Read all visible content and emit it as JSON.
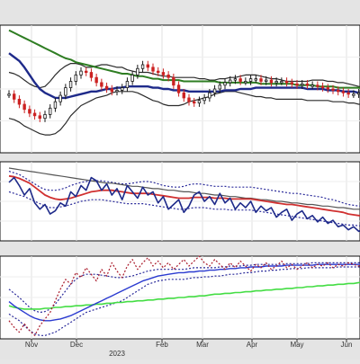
{
  "chart_data": [
    {
      "panel": "price",
      "type": "candlestick",
      "title": "",
      "grid": true,
      "ylim": [
        0,
        100
      ],
      "series": [
        {
          "key": "upper_band",
          "color": "#2b2b2b",
          "style": "solid",
          "values": [
            63,
            62,
            60,
            57,
            54,
            52,
            51,
            52,
            56,
            61,
            65,
            68,
            70,
            70,
            69,
            67,
            67,
            68,
            69,
            69,
            68,
            67,
            67,
            65,
            64,
            63,
            63,
            63,
            62,
            61,
            60,
            60,
            59,
            59,
            59,
            59,
            59,
            58,
            58,
            57,
            57,
            58,
            58,
            59,
            59,
            60,
            61,
            61,
            61,
            60,
            59,
            58,
            58,
            57,
            56,
            56,
            56,
            56,
            56,
            57,
            57,
            57,
            56,
            56,
            55,
            55,
            54,
            53,
            52,
            51
          ]
        },
        {
          "key": "lower_band",
          "color": "#2b2b2b",
          "style": "solid",
          "values": [
            27,
            26,
            24,
            21,
            19,
            17,
            15,
            14,
            14,
            15,
            18,
            23,
            29,
            33,
            37,
            39,
            41,
            43,
            44,
            45,
            47,
            48,
            48,
            48,
            48,
            47,
            45,
            43,
            41,
            40,
            38,
            37,
            37,
            37,
            38,
            40,
            41,
            42,
            43,
            44,
            46,
            47,
            48,
            48,
            48,
            47,
            46,
            45,
            44,
            44,
            43,
            43,
            42,
            42,
            42,
            42,
            42,
            42,
            41,
            41,
            41,
            41,
            41,
            40,
            40,
            40,
            39,
            39,
            38,
            38
          ]
        },
        {
          "key": "ma_blue",
          "color": "#1e2a8a",
          "style": "solid",
          "values": [
            78,
            75,
            72,
            67,
            61,
            55,
            50,
            47,
            45,
            43,
            43,
            43,
            44,
            45,
            46,
            47,
            48,
            48,
            49,
            50,
            50,
            51,
            51,
            52,
            52,
            52,
            52,
            52,
            51,
            51,
            50,
            50,
            49,
            49,
            49,
            48,
            48,
            48,
            48,
            48,
            48,
            48,
            49,
            49,
            49,
            50,
            50,
            50,
            51,
            51,
            51,
            51,
            51,
            51,
            51,
            51,
            51,
            51,
            50,
            50,
            50,
            50,
            49,
            49,
            49,
            48,
            48,
            48,
            47,
            47
          ]
        },
        {
          "key": "ma_green",
          "color": "#2e7d22",
          "style": "solid",
          "values": [
            96,
            94,
            92,
            90,
            88,
            86,
            84,
            82,
            80,
            78,
            76,
            74,
            73,
            71,
            70,
            69,
            68,
            67,
            66,
            65,
            64,
            63,
            62,
            62,
            61,
            60,
            60,
            59,
            58,
            58,
            57,
            57,
            57,
            57,
            56,
            56,
            56,
            56,
            56,
            56,
            56,
            55,
            55,
            55,
            55,
            55,
            55,
            55,
            55,
            54,
            54,
            54,
            54,
            54,
            54,
            54,
            53,
            53,
            53,
            53,
            52,
            52,
            52,
            52,
            51,
            51,
            51,
            51,
            51,
            50
          ]
        },
        {
          "key": "close",
          "type": "candlestick",
          "color_up": "#1a1a1a",
          "color_down": "#cc2222",
          "values": [
            46,
            42,
            38,
            34,
            31,
            29,
            27,
            30,
            35,
            40,
            45,
            51,
            56,
            61,
            64,
            63,
            59,
            55,
            52,
            50,
            48,
            49,
            51,
            56,
            61,
            66,
            69,
            67,
            64,
            63,
            61,
            59,
            53,
            47,
            43,
            40,
            39,
            41,
            43,
            47,
            50,
            53,
            55,
            57,
            58,
            56,
            56,
            58,
            58,
            56,
            57,
            55,
            56,
            56,
            55,
            54,
            53,
            54,
            53,
            53,
            52,
            51,
            50,
            49,
            48,
            47,
            46,
            46,
            47,
            48
          ]
        }
      ]
    },
    {
      "panel": "oscillator",
      "type": "line",
      "grid": true,
      "ylim": [
        0,
        100
      ],
      "series": [
        {
          "key": "upper_envelope",
          "color": "#2a2a9a",
          "style": "dotted",
          "values": [
            88,
            86,
            84,
            80,
            76,
            72,
            68,
            65,
            64,
            64,
            65,
            67,
            70,
            72,
            74,
            75,
            76,
            76,
            76,
            75,
            74,
            73,
            72,
            72,
            73,
            74,
            75,
            75,
            74,
            72,
            70,
            69,
            68,
            68,
            69,
            71,
            72,
            72,
            71,
            70,
            69,
            69,
            69,
            68,
            68,
            68,
            68,
            68,
            67,
            66,
            65,
            64,
            63,
            62,
            61,
            60,
            60,
            59,
            58,
            57,
            56,
            55,
            53,
            52,
            50,
            48,
            46,
            45,
            44,
            44
          ]
        },
        {
          "key": "lower_envelope",
          "color": "#2a2a9a",
          "style": "dotted",
          "values": [
            62,
            60,
            58,
            56,
            53,
            50,
            47,
            44,
            42,
            42,
            43,
            44,
            46,
            48,
            50,
            51,
            52,
            52,
            52,
            51,
            50,
            49,
            48,
            47,
            47,
            47,
            47,
            46,
            45,
            44,
            43,
            42,
            41,
            40,
            40,
            41,
            42,
            42,
            42,
            41,
            40,
            40,
            40,
            39,
            39,
            39,
            39,
            39,
            38,
            37,
            36,
            35,
            34,
            33,
            32,
            31,
            30,
            29,
            28,
            27,
            26,
            25,
            24,
            23,
            22,
            21,
            20,
            20,
            19,
            19
          ]
        },
        {
          "key": "trend_gray",
          "color": "#555555",
          "style": "solid",
          "values": [
            92,
            91,
            90,
            89,
            88,
            87,
            86,
            85,
            84,
            83,
            82,
            81,
            80,
            79,
            78,
            77,
            76,
            75,
            74,
            73,
            73,
            72,
            71,
            70,
            69,
            69,
            68,
            67,
            66,
            66,
            65,
            64,
            64,
            63,
            62,
            62,
            61,
            60,
            60,
            59,
            58,
            58,
            57,
            56,
            56,
            55,
            54,
            54,
            53,
            52,
            52,
            51,
            50,
            50,
            49,
            48,
            48,
            47,
            46,
            46,
            45,
            44,
            44,
            43,
            42,
            42,
            41,
            40,
            40,
            39
          ]
        },
        {
          "key": "signal_red",
          "color": "#d03030",
          "style": "solid",
          "values": [
            82,
            81,
            79,
            76,
            73,
            68,
            63,
            58,
            55,
            53,
            52,
            53,
            54,
            56,
            58,
            60,
            62,
            63,
            64,
            64,
            64,
            63,
            62,
            61,
            60,
            60,
            60,
            60,
            59,
            58,
            57,
            56,
            55,
            54,
            54,
            54,
            55,
            55,
            55,
            55,
            54,
            54,
            54,
            53,
            53,
            53,
            53,
            53,
            52,
            51,
            50,
            49,
            48,
            47,
            46,
            46,
            45,
            44,
            43,
            42,
            41,
            40,
            39,
            38,
            37,
            36,
            34,
            33,
            32,
            31
          ]
        },
        {
          "key": "oscillator_blue",
          "color": "#1e2a8a",
          "style": "solid",
          "values": [
            74,
            80,
            70,
            58,
            66,
            48,
            40,
            46,
            34,
            38,
            48,
            44,
            62,
            56,
            70,
            64,
            80,
            76,
            64,
            72,
            58,
            66,
            52,
            70,
            62,
            54,
            68,
            58,
            62,
            48,
            56,
            40,
            46,
            52,
            36,
            44,
            58,
            62,
            50,
            56,
            46,
            60,
            48,
            54,
            40,
            48,
            42,
            50,
            36,
            44,
            38,
            42,
            30,
            36,
            40,
            26,
            34,
            38,
            28,
            32,
            24,
            30,
            22,
            26,
            18,
            20,
            14,
            18,
            12,
            16
          ]
        }
      ]
    },
    {
      "panel": "lower",
      "type": "line",
      "grid": true,
      "ylim": [
        0,
        100
      ],
      "series": [
        {
          "key": "upper_envelope",
          "color": "#2a2a9a",
          "style": "dotted",
          "values": [
            60,
            55,
            50,
            44,
            38,
            34,
            32,
            33,
            36,
            42,
            50,
            58,
            66,
            72,
            76,
            78,
            78,
            78,
            77,
            76,
            75,
            74,
            74,
            75,
            76,
            78,
            80,
            82,
            83,
            84,
            84,
            84,
            84,
            84,
            84,
            85,
            86,
            86,
            86,
            86,
            86,
            87,
            87,
            88,
            88,
            88,
            89,
            89,
            90,
            90,
            90,
            90,
            90,
            90,
            91,
            91,
            91,
            91,
            91,
            92,
            92,
            92,
            92,
            92,
            92,
            92,
            92,
            92,
            92,
            92
          ]
        },
        {
          "key": "lower_envelope",
          "color": "#2a2a9a",
          "style": "dotted",
          "values": [
            30,
            26,
            22,
            16,
            10,
            6,
            4,
            4,
            6,
            8,
            12,
            16,
            20,
            24,
            28,
            32,
            34,
            36,
            38,
            40,
            42,
            44,
            46,
            50,
            54,
            58,
            62,
            66,
            68,
            70,
            71,
            72,
            72,
            72,
            72,
            73,
            74,
            74,
            75,
            75,
            76,
            76,
            77,
            78,
            78,
            79,
            80,
            80,
            81,
            82,
            82,
            83,
            83,
            84,
            84,
            85,
            85,
            85,
            86,
            86,
            86,
            86,
            86,
            86,
            87,
            87,
            87,
            87,
            87,
            87
          ]
        },
        {
          "key": "slow_green",
          "color": "#44dd44",
          "style": "solid",
          "values": [
            40,
            38,
            37,
            36,
            36,
            36,
            36,
            37,
            37,
            38,
            38,
            39,
            39,
            40,
            40,
            41,
            41,
            42,
            42,
            43,
            43,
            44,
            44,
            45,
            45,
            46,
            46,
            47,
            47,
            48,
            48,
            49,
            49,
            50,
            50,
            51,
            51,
            52,
            52,
            53,
            54,
            54,
            55,
            55,
            56,
            56,
            57,
            57,
            58,
            58,
            59,
            59,
            60,
            60,
            61,
            61,
            62,
            62,
            63,
            63,
            64,
            64,
            65,
            65,
            66,
            66,
            67,
            67,
            68,
            68
          ]
        },
        {
          "key": "mid_blue",
          "color": "#2a3ad0",
          "style": "solid",
          "values": [
            45,
            40,
            36,
            32,
            28,
            25,
            23,
            22,
            22,
            23,
            24,
            26,
            28,
            31,
            34,
            37,
            40,
            43,
            46,
            49,
            52,
            55,
            58,
            61,
            64,
            67,
            70,
            72,
            74,
            76,
            77,
            78,
            79,
            80,
            80,
            81,
            81,
            82,
            82,
            83,
            83,
            84,
            84,
            85,
            85,
            86,
            86,
            87,
            87,
            87,
            88,
            88,
            88,
            88,
            89,
            89,
            89,
            89,
            89,
            89,
            90,
            90,
            90,
            90,
            90,
            90,
            90,
            90,
            90,
            90
          ]
        },
        {
          "key": "fast_dotted_red",
          "color": "#aa1a2a",
          "style": "dotted",
          "values": [
            22,
            14,
            8,
            18,
            10,
            4,
            16,
            24,
            32,
            46,
            60,
            72,
            66,
            80,
            74,
            86,
            78,
            70,
            84,
            76,
            92,
            82,
            74,
            88,
            96,
            84,
            92,
            98,
            88,
            94,
            86,
            92,
            84,
            90,
            96,
            88,
            94,
            100,
            92,
            88,
            96,
            90,
            84,
            92,
            86,
            94,
            88,
            82,
            90,
            86,
            92,
            84,
            88,
            94,
            86,
            90,
            84,
            88,
            92,
            86,
            90,
            88,
            92,
            86,
            90,
            88,
            92,
            90,
            88,
            92
          ]
        }
      ]
    },
    {
      "panel": "x-axis",
      "type": "axis",
      "tick_labels": [
        "Nov",
        "Dec",
        "Feb",
        "Mar",
        "Apr",
        "May",
        "Jun"
      ],
      "tick_positions": [
        7,
        17,
        36,
        45,
        56,
        66,
        77
      ],
      "year_label": "2023",
      "year_position": 26,
      "x_range": [
        0,
        80
      ]
    }
  ]
}
